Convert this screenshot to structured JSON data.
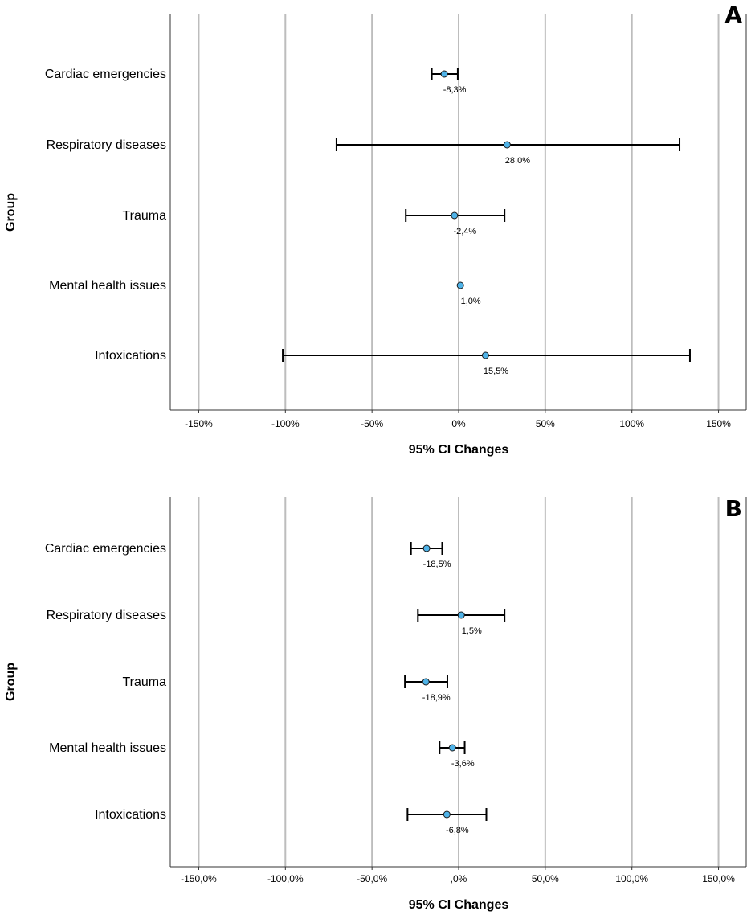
{
  "chart_data": [
    {
      "type": "errorbar",
      "panel_label": "A",
      "ylabel": "Group",
      "xlabel": "95% CI Changes",
      "xlim": [
        -165,
        165
      ],
      "x_ticks": [
        -150,
        -100,
        -50,
        0,
        50,
        100,
        150
      ],
      "x_tick_labels": [
        "-150%",
        "-100%",
        "-50%",
        "0%",
        "50%",
        "100%",
        "150%"
      ],
      "grid": true,
      "categories": [
        "Cardiac emergencies",
        "Respiratory diseases",
        "Trauma",
        "Mental health issues",
        "Intoxications"
      ],
      "values": [
        -8.3,
        28.0,
        -2.4,
        1.0,
        15.5
      ],
      "ci_lower": [
        -15.5,
        -70.5,
        -30.5,
        1.0,
        -101.5
      ],
      "ci_upper": [
        -0.5,
        127.5,
        26.5,
        1.0,
        133.5
      ],
      "value_labels": [
        "-8,3%",
        "28,0%",
        "-2,4%",
        "1,0%",
        "15,5%"
      ]
    },
    {
      "type": "errorbar",
      "panel_label": "B",
      "ylabel": "Group",
      "xlabel": "95% CI Changes",
      "xlim": [
        -165,
        165
      ],
      "x_ticks": [
        -150,
        -100,
        -50,
        0,
        50,
        100,
        150
      ],
      "x_tick_labels": [
        "-150,0%",
        "-100,0%",
        "-50,0%",
        ",0%",
        "50,0%",
        "100,0%",
        "150,0%"
      ],
      "grid": true,
      "categories": [
        "Cardiac emergencies",
        "Respiratory diseases",
        "Trauma",
        "Mental health issues",
        "Intoxications"
      ],
      "values": [
        -18.5,
        1.5,
        -18.9,
        -3.6,
        -6.8
      ],
      "ci_lower": [
        -27.5,
        -23.5,
        -31.0,
        -11.0,
        -29.5
      ],
      "ci_upper": [
        -9.5,
        26.5,
        -6.5,
        3.5,
        16.0
      ],
      "value_labels": [
        "-18,5%",
        "1,5%",
        "-18,9%",
        "-3,6%",
        "-6,8%"
      ]
    }
  ]
}
